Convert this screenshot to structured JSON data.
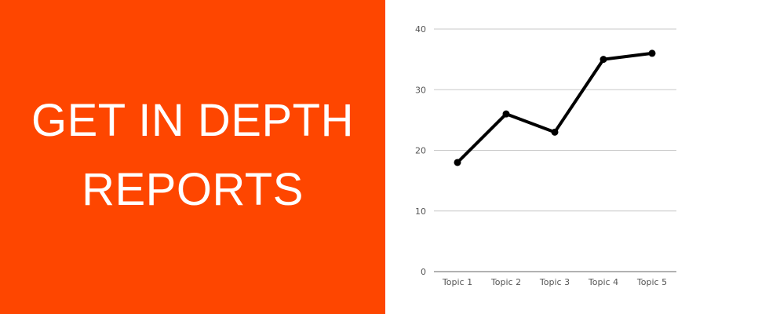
{
  "promo": {
    "headline_line1": "GET IN DEPTH",
    "headline_line2": "REPORTS",
    "background_color": "#fe4600",
    "text_color": "#ffffff"
  },
  "chart_data": {
    "type": "line",
    "categories": [
      "Topic 1",
      "Topic 2",
      "Topic 3",
      "Topic 4",
      "Topic 5"
    ],
    "series": [
      {
        "values": [
          18,
          26,
          23,
          35,
          36
        ],
        "color": "#000000"
      }
    ],
    "ylim": [
      0,
      40
    ],
    "yticks": [
      0,
      10,
      20,
      30,
      40
    ],
    "grid": true,
    "legend": "none"
  }
}
